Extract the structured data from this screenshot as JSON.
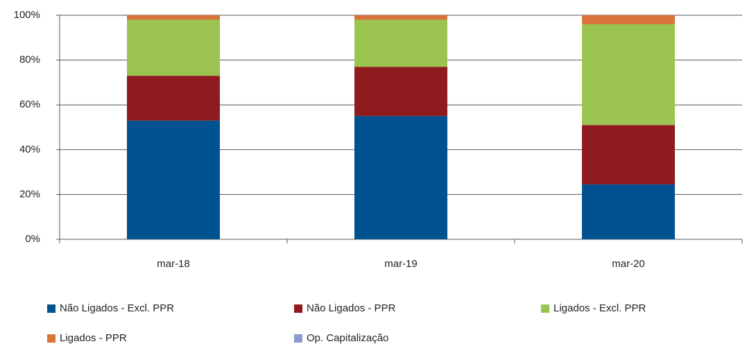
{
  "chart_data": {
    "type": "stacked_bar",
    "categories": [
      "mar-18",
      "mar-19",
      "mar-20"
    ],
    "series": [
      {
        "name": "Não Ligados - Excl. PPR",
        "color": "#00518f",
        "values": [
          53,
          55,
          24.5
        ]
      },
      {
        "name": "Não Ligados - PPR",
        "color": "#8f1b1f",
        "values": [
          20,
          22,
          26.5
        ]
      },
      {
        "name": "Ligados - Excl. PPR",
        "color": "#9bc34f",
        "values": [
          25,
          21,
          45
        ]
      },
      {
        "name": "Ligados - PPR",
        "color": "#d9733a",
        "values": [
          2,
          2,
          4
        ]
      },
      {
        "name": "Op. Capitalização",
        "color": "#8d9bcc",
        "values": [
          0,
          0,
          0
        ]
      }
    ],
    "ylim": [
      0,
      100
    ],
    "yticks": [
      {
        "value": 0,
        "label": "0%"
      },
      {
        "value": 20,
        "label": "20%"
      },
      {
        "value": 40,
        "label": "40%"
      },
      {
        "value": 60,
        "label": "60%"
      },
      {
        "value": 80,
        "label": "80%"
      },
      {
        "value": 100,
        "label": "100%"
      }
    ],
    "grid": true
  }
}
